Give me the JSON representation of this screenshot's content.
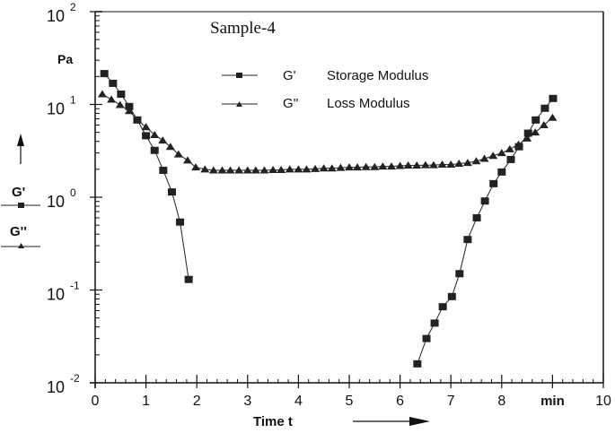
{
  "chart_data": {
    "type": "scatter",
    "title": "Sample-4",
    "xlabel": "Time t",
    "x_unit": "min",
    "ylabel_unit": "Pa",
    "ylabel_series": [
      "G'",
      "G''"
    ],
    "yscale": "log",
    "xlim": [
      0,
      10
    ],
    "ylim": [
      0.01,
      100
    ],
    "x_ticks": [
      "0",
      "1",
      "2",
      "3",
      "4",
      "5",
      "6",
      "7",
      "8",
      "min",
      "10"
    ],
    "y_ticks": [
      {
        "base": "10",
        "exp": "-2",
        "value": 0.01
      },
      {
        "base": "10",
        "exp": "-1",
        "value": 0.1
      },
      {
        "base": "10",
        "exp": "0",
        "value": 1
      },
      {
        "base": "10",
        "exp": "1",
        "value": 10
      },
      {
        "base": "10",
        "exp": "2",
        "value": 100
      }
    ],
    "grid": false,
    "legend_position": "top-center-inside",
    "legend": [
      {
        "symbol": "G'",
        "label": "Storage Modulus",
        "marker": "square"
      },
      {
        "symbol": "G''",
        "label": "Loss Modulus",
        "marker": "triangle"
      }
    ],
    "series": [
      {
        "name": "G' Storage Modulus",
        "marker": "square",
        "segments": [
          {
            "x": [
              0.18,
              0.35,
              0.51,
              0.67,
              0.83,
              1.0,
              1.17,
              1.34,
              1.51,
              1.67,
              1.84
            ],
            "y": [
              21.5,
              16.9,
              12.9,
              9.5,
              6.8,
              4.6,
              3.2,
              1.95,
              1.14,
              0.54,
              0.13
            ]
          },
          {
            "x": [
              6.34,
              6.52,
              6.68,
              6.84,
              7.02,
              7.17,
              7.33,
              7.51,
              7.67,
              7.84,
              8.0,
              8.18,
              8.34,
              8.52,
              8.67,
              8.85,
              9.01
            ],
            "y": [
              0.016,
              0.03,
              0.044,
              0.066,
              0.085,
              0.15,
              0.35,
              0.6,
              0.91,
              1.4,
              1.87,
              2.55,
              3.5,
              4.9,
              6.8,
              9.1,
              11.6
            ]
          }
        ]
      },
      {
        "name": "G'' Loss Modulus",
        "marker": "triangle",
        "segments": [
          {
            "x": [
              0.14,
              0.32,
              0.49,
              0.67,
              0.83,
              1.0,
              1.17,
              1.33,
              1.48,
              1.64,
              1.82,
              1.98,
              2.16,
              2.33,
              2.5,
              2.66,
              2.83,
              3.0,
              3.16,
              3.33,
              3.5,
              3.66,
              3.83,
              4.0,
              4.16,
              4.33,
              4.5,
              4.66,
              4.83,
              5.0,
              5.16,
              5.33,
              5.5,
              5.66,
              5.83,
              6.0,
              6.16,
              6.33,
              6.5,
              6.66,
              6.83,
              7.0,
              7.16,
              7.33,
              7.5,
              7.66,
              7.83,
              8.0,
              8.16,
              8.33,
              8.5,
              8.66,
              8.83,
              9.0
            ],
            "y": [
              12.9,
              11.3,
              9.9,
              8.5,
              6.8,
              5.7,
              4.7,
              4.1,
              3.5,
              2.9,
              2.5,
              2.1,
              2.0,
              1.95,
              1.95,
              1.95,
              1.95,
              1.95,
              1.95,
              1.95,
              1.97,
              1.97,
              2.0,
              2.0,
              2.0,
              2.02,
              2.05,
              2.05,
              2.08,
              2.1,
              2.1,
              2.12,
              2.12,
              2.15,
              2.15,
              2.18,
              2.2,
              2.2,
              2.22,
              2.22,
              2.25,
              2.25,
              2.3,
              2.35,
              2.45,
              2.6,
              2.8,
              3.0,
              3.3,
              3.7,
              4.3,
              5.0,
              6.0,
              7.2
            ]
          }
        ]
      }
    ]
  }
}
